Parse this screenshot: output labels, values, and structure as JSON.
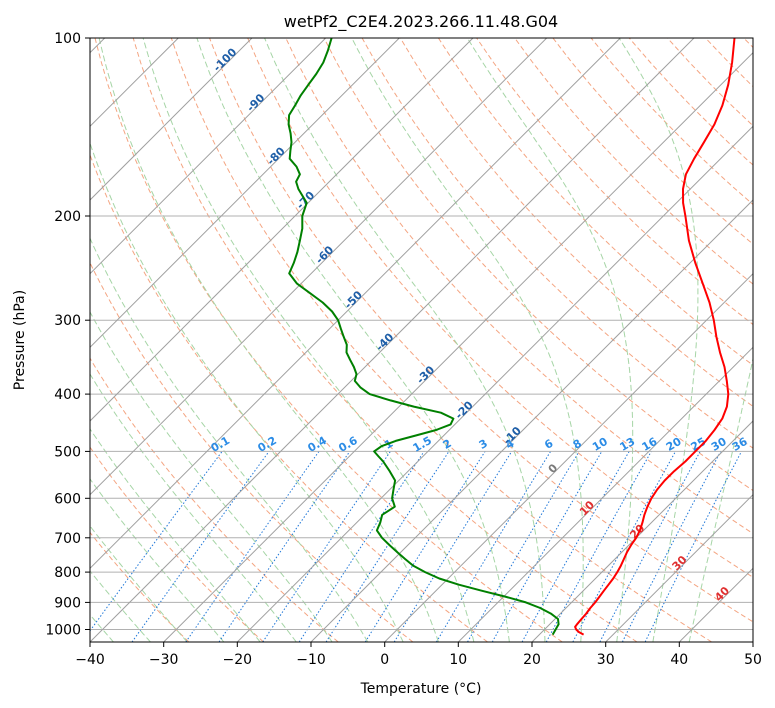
{
  "chart_data": {
    "type": "line",
    "title": "wetPf2_C2E4.2023.266.11.48.G04",
    "xlabel": "Temperature (°C)",
    "ylabel": "Pressure (hPa)",
    "xlim": [
      -40,
      50
    ],
    "ylim": [
      1050,
      100
    ],
    "y_scale": "log",
    "grid": true,
    "x_ticks": [
      -40,
      -30,
      -20,
      -10,
      0,
      10,
      20,
      30,
      40,
      50
    ],
    "y_ticks": [
      100,
      200,
      300,
      400,
      500,
      600,
      700,
      800,
      900,
      1000
    ],
    "skew": 45,
    "colors": {
      "temperature": "#ff0000",
      "dewpoint": "#008000",
      "dry_adiabat": "#f4a582",
      "moist_adiabat": "#a6d5a6",
      "mixing_ratio": "#1f77d8",
      "grid": "#b0b0b0",
      "isotherm": "#a0a0a0"
    },
    "series": [
      {
        "key": "temperature",
        "pressure": [
          1020,
          1010,
          1000,
          990,
          980,
          960,
          940,
          920,
          900,
          880,
          860,
          840,
          820,
          800,
          780,
          760,
          740,
          720,
          700,
          680,
          660,
          640,
          620,
          600,
          580,
          560,
          540,
          520,
          500,
          480,
          460,
          440,
          420,
          400,
          380,
          360,
          340,
          320,
          300,
          280,
          260,
          240,
          220,
          200,
          190,
          180,
          170,
          160,
          150,
          140,
          130,
          120,
          110,
          100
        ],
        "values": [
          26.0,
          25.0,
          24.3,
          23.8,
          23.7,
          23.6,
          23.5,
          23.3,
          23.2,
          23.0,
          22.8,
          22.6,
          22.4,
          22.1,
          21.7,
          21.2,
          20.7,
          20.3,
          20.0,
          19.5,
          18.8,
          18.0,
          17.3,
          16.7,
          16.3,
          16.1,
          16.1,
          16.3,
          16.3,
          16.3,
          16.0,
          15.5,
          14.5,
          13.0,
          11.0,
          8.8,
          6.2,
          3.6,
          1.0,
          -2.0,
          -5.5,
          -9.3,
          -13.2,
          -17.0,
          -19.1,
          -21.0,
          -22.6,
          -23.6,
          -24.5,
          -25.5,
          -27.0,
          -29.0,
          -31.5,
          -34.5
        ]
      },
      {
        "key": "dewpoint",
        "pressure": [
          1020,
          1000,
          980,
          960,
          940,
          920,
          900,
          880,
          860,
          840,
          820,
          800,
          780,
          760,
          740,
          720,
          700,
          680,
          660,
          640,
          620,
          600,
          580,
          560,
          540,
          520,
          510,
          500,
          490,
          480,
          470,
          460,
          450,
          440,
          430,
          420,
          410,
          400,
          390,
          380,
          370,
          360,
          350,
          340,
          330,
          320,
          310,
          300,
          290,
          280,
          270,
          260,
          250,
          240,
          230,
          220,
          210,
          200,
          190,
          180,
          175,
          170,
          165,
          160,
          155,
          150,
          145,
          140,
          135,
          130,
          125,
          120,
          115,
          110,
          105,
          100
        ],
        "values": [
          21.8,
          21.5,
          21.2,
          20.4,
          18.7,
          16.5,
          13.8,
          10.2,
          6.2,
          2.3,
          -1.2,
          -4.0,
          -6.5,
          -8.5,
          -10.5,
          -12.5,
          -14.5,
          -16.2,
          -16.8,
          -17.6,
          -17.0,
          -18.5,
          -19.5,
          -20.5,
          -22.5,
          -24.7,
          -26.0,
          -27.3,
          -27.0,
          -25.8,
          -23.8,
          -21.8,
          -20.6,
          -21.0,
          -23.5,
          -28.0,
          -32.0,
          -35.7,
          -37.8,
          -39.5,
          -40.2,
          -41.5,
          -43.0,
          -44.5,
          -45.5,
          -47.0,
          -48.5,
          -50.0,
          -52.0,
          -54.5,
          -57.5,
          -60.6,
          -63.0,
          -63.8,
          -64.8,
          -66.0,
          -67.3,
          -69.0,
          -70.2,
          -73.2,
          -74.5,
          -75.0,
          -76.5,
          -78.5,
          -79.5,
          -80.5,
          -81.8,
          -83.3,
          -84.5,
          -85.0,
          -85.6,
          -86.0,
          -86.4,
          -87.0,
          -88.0,
          -89.2
        ]
      }
    ],
    "isotherm_labels": [
      -100,
      -90,
      -80,
      -70,
      -60,
      -50,
      -40,
      -30,
      -20,
      -10
    ],
    "mixing_ratio_labels": [
      "0.1",
      "0.2",
      "0.4",
      "0.6",
      "1",
      "1.5",
      "2",
      "3",
      "4",
      "6",
      "8",
      "10",
      "13",
      "16",
      "20",
      "25",
      "30",
      "36"
    ],
    "mixing_ratio_values": [
      0.1,
      0.2,
      0.4,
      0.6,
      1,
      1.5,
      2,
      3,
      4,
      6,
      8,
      10,
      13,
      16,
      20,
      25,
      30,
      36
    ],
    "upper_isotherm_labels": [
      "0",
      "10",
      "20",
      "30",
      "40"
    ]
  }
}
